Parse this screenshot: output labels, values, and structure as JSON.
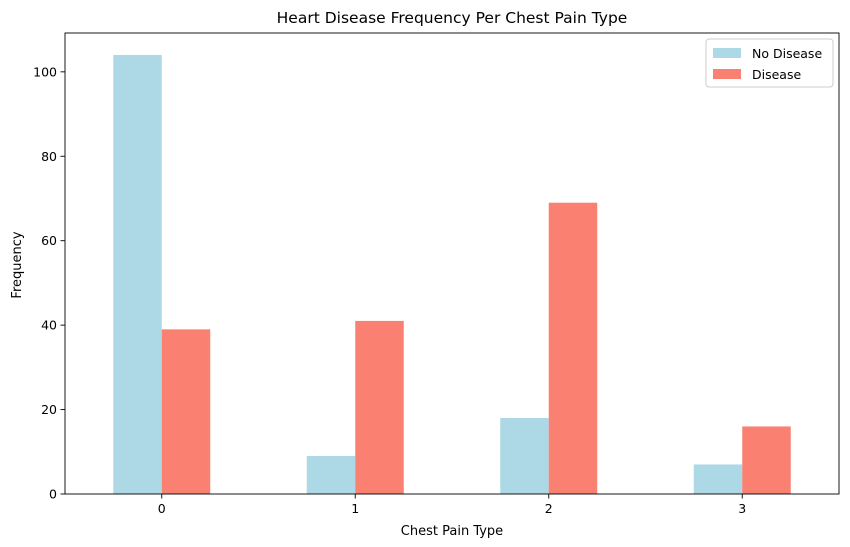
{
  "chart_data": {
    "type": "bar",
    "title": "Heart Disease Frequency Per Chest Pain Type",
    "xlabel": "Chest Pain Type",
    "ylabel": "Frequency",
    "categories": [
      "0",
      "1",
      "2",
      "3"
    ],
    "series": [
      {
        "name": "No Disease",
        "color": "#add8e6",
        "values": [
          104,
          9,
          18,
          7
        ]
      },
      {
        "name": "Disease",
        "color": "#fa8072",
        "values": [
          39,
          41,
          69,
          16
        ]
      }
    ],
    "ylim": [
      0,
      109.2
    ],
    "yticks": [
      0,
      20,
      40,
      60,
      80,
      100
    ],
    "grid": false,
    "legend_position": "top-right"
  }
}
